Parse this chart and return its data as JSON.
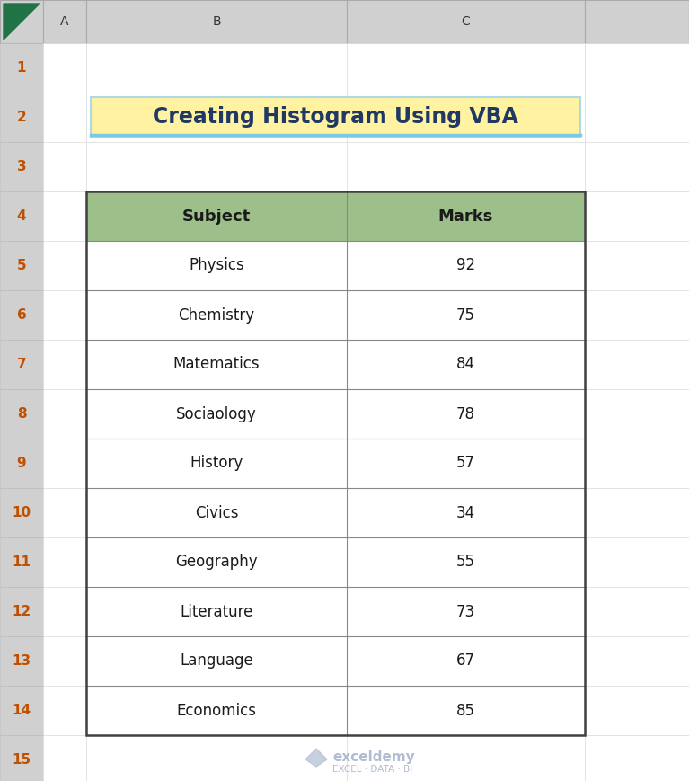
{
  "title": "Creating Histogram Using VBA",
  "title_bg": "#FFF2A0",
  "title_border": "#ADD8E6",
  "title_text_color": "#1F3864",
  "header_row": [
    "Subject",
    "Marks"
  ],
  "header_bg": "#9DC08B",
  "header_text_color": "#1a1a1a",
  "rows": [
    [
      "Physics",
      "92"
    ],
    [
      "Chemistry",
      "75"
    ],
    [
      "Matematics",
      "84"
    ],
    [
      "Sociaology",
      "78"
    ],
    [
      "History",
      "57"
    ],
    [
      "Civics",
      "34"
    ],
    [
      "Geography",
      "55"
    ],
    [
      "Literature",
      "73"
    ],
    [
      "Language",
      "67"
    ],
    [
      "Economics",
      "85"
    ]
  ],
  "row_bg": "#FFFFFF",
  "row_text_color": "#1a1a1a",
  "table_border_color": "#404040",
  "cell_border_color": "#888888",
  "watermark_color": "#B0BDD0",
  "watermark_text_bold": "exceldemy",
  "watermark_text_sub": "EXCEL · DATA · BI",
  "spreadsheet_bg": "#FFFFFF",
  "grid_bg": "#D0D0D0",
  "row_num_text_color": "#C05000",
  "col_header_text_color": "#333333",
  "font_size_title": 17,
  "font_size_header": 13,
  "font_size_cell": 12,
  "font_size_rownum": 11,
  "font_size_colhdr": 10
}
